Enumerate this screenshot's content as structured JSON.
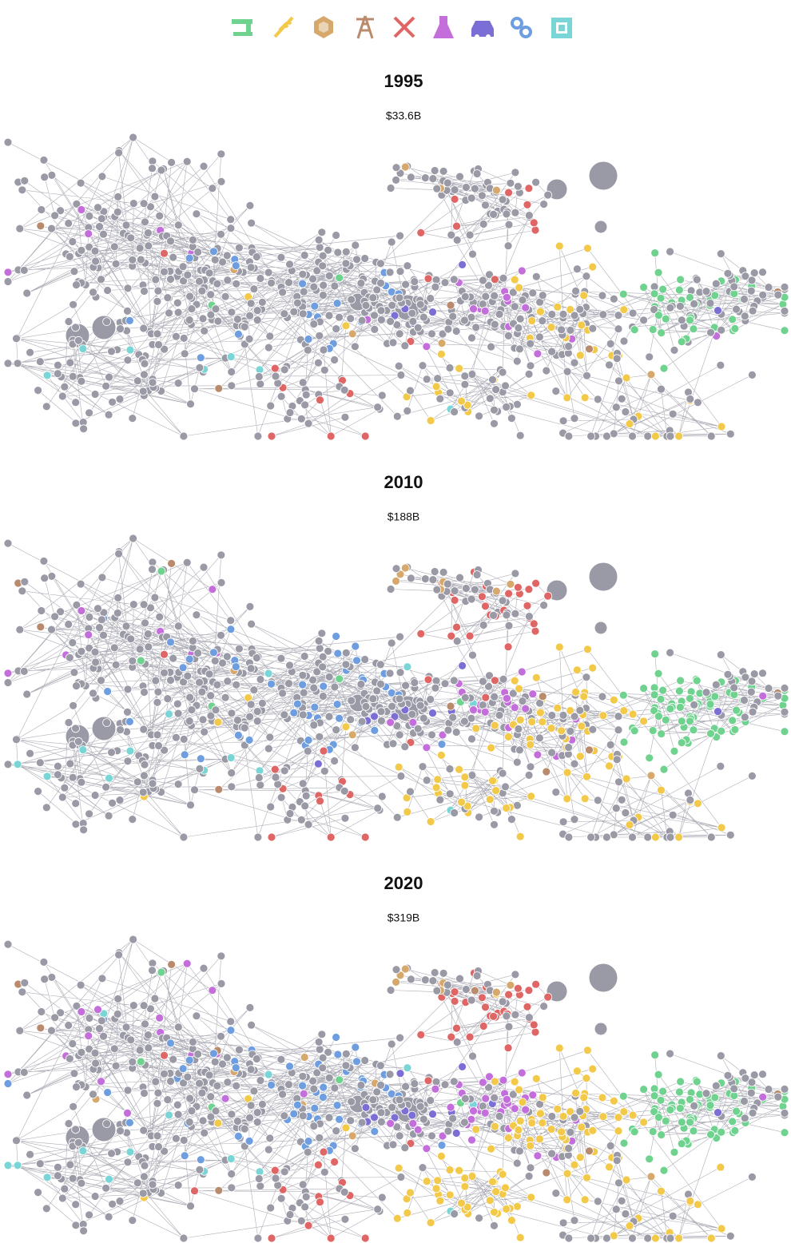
{
  "panels": [
    {
      "year": "1995",
      "value": "$33.6B"
    },
    {
      "year": "2010",
      "value": "$188B"
    },
    {
      "year": "2020",
      "value": "$319B"
    }
  ]
}
